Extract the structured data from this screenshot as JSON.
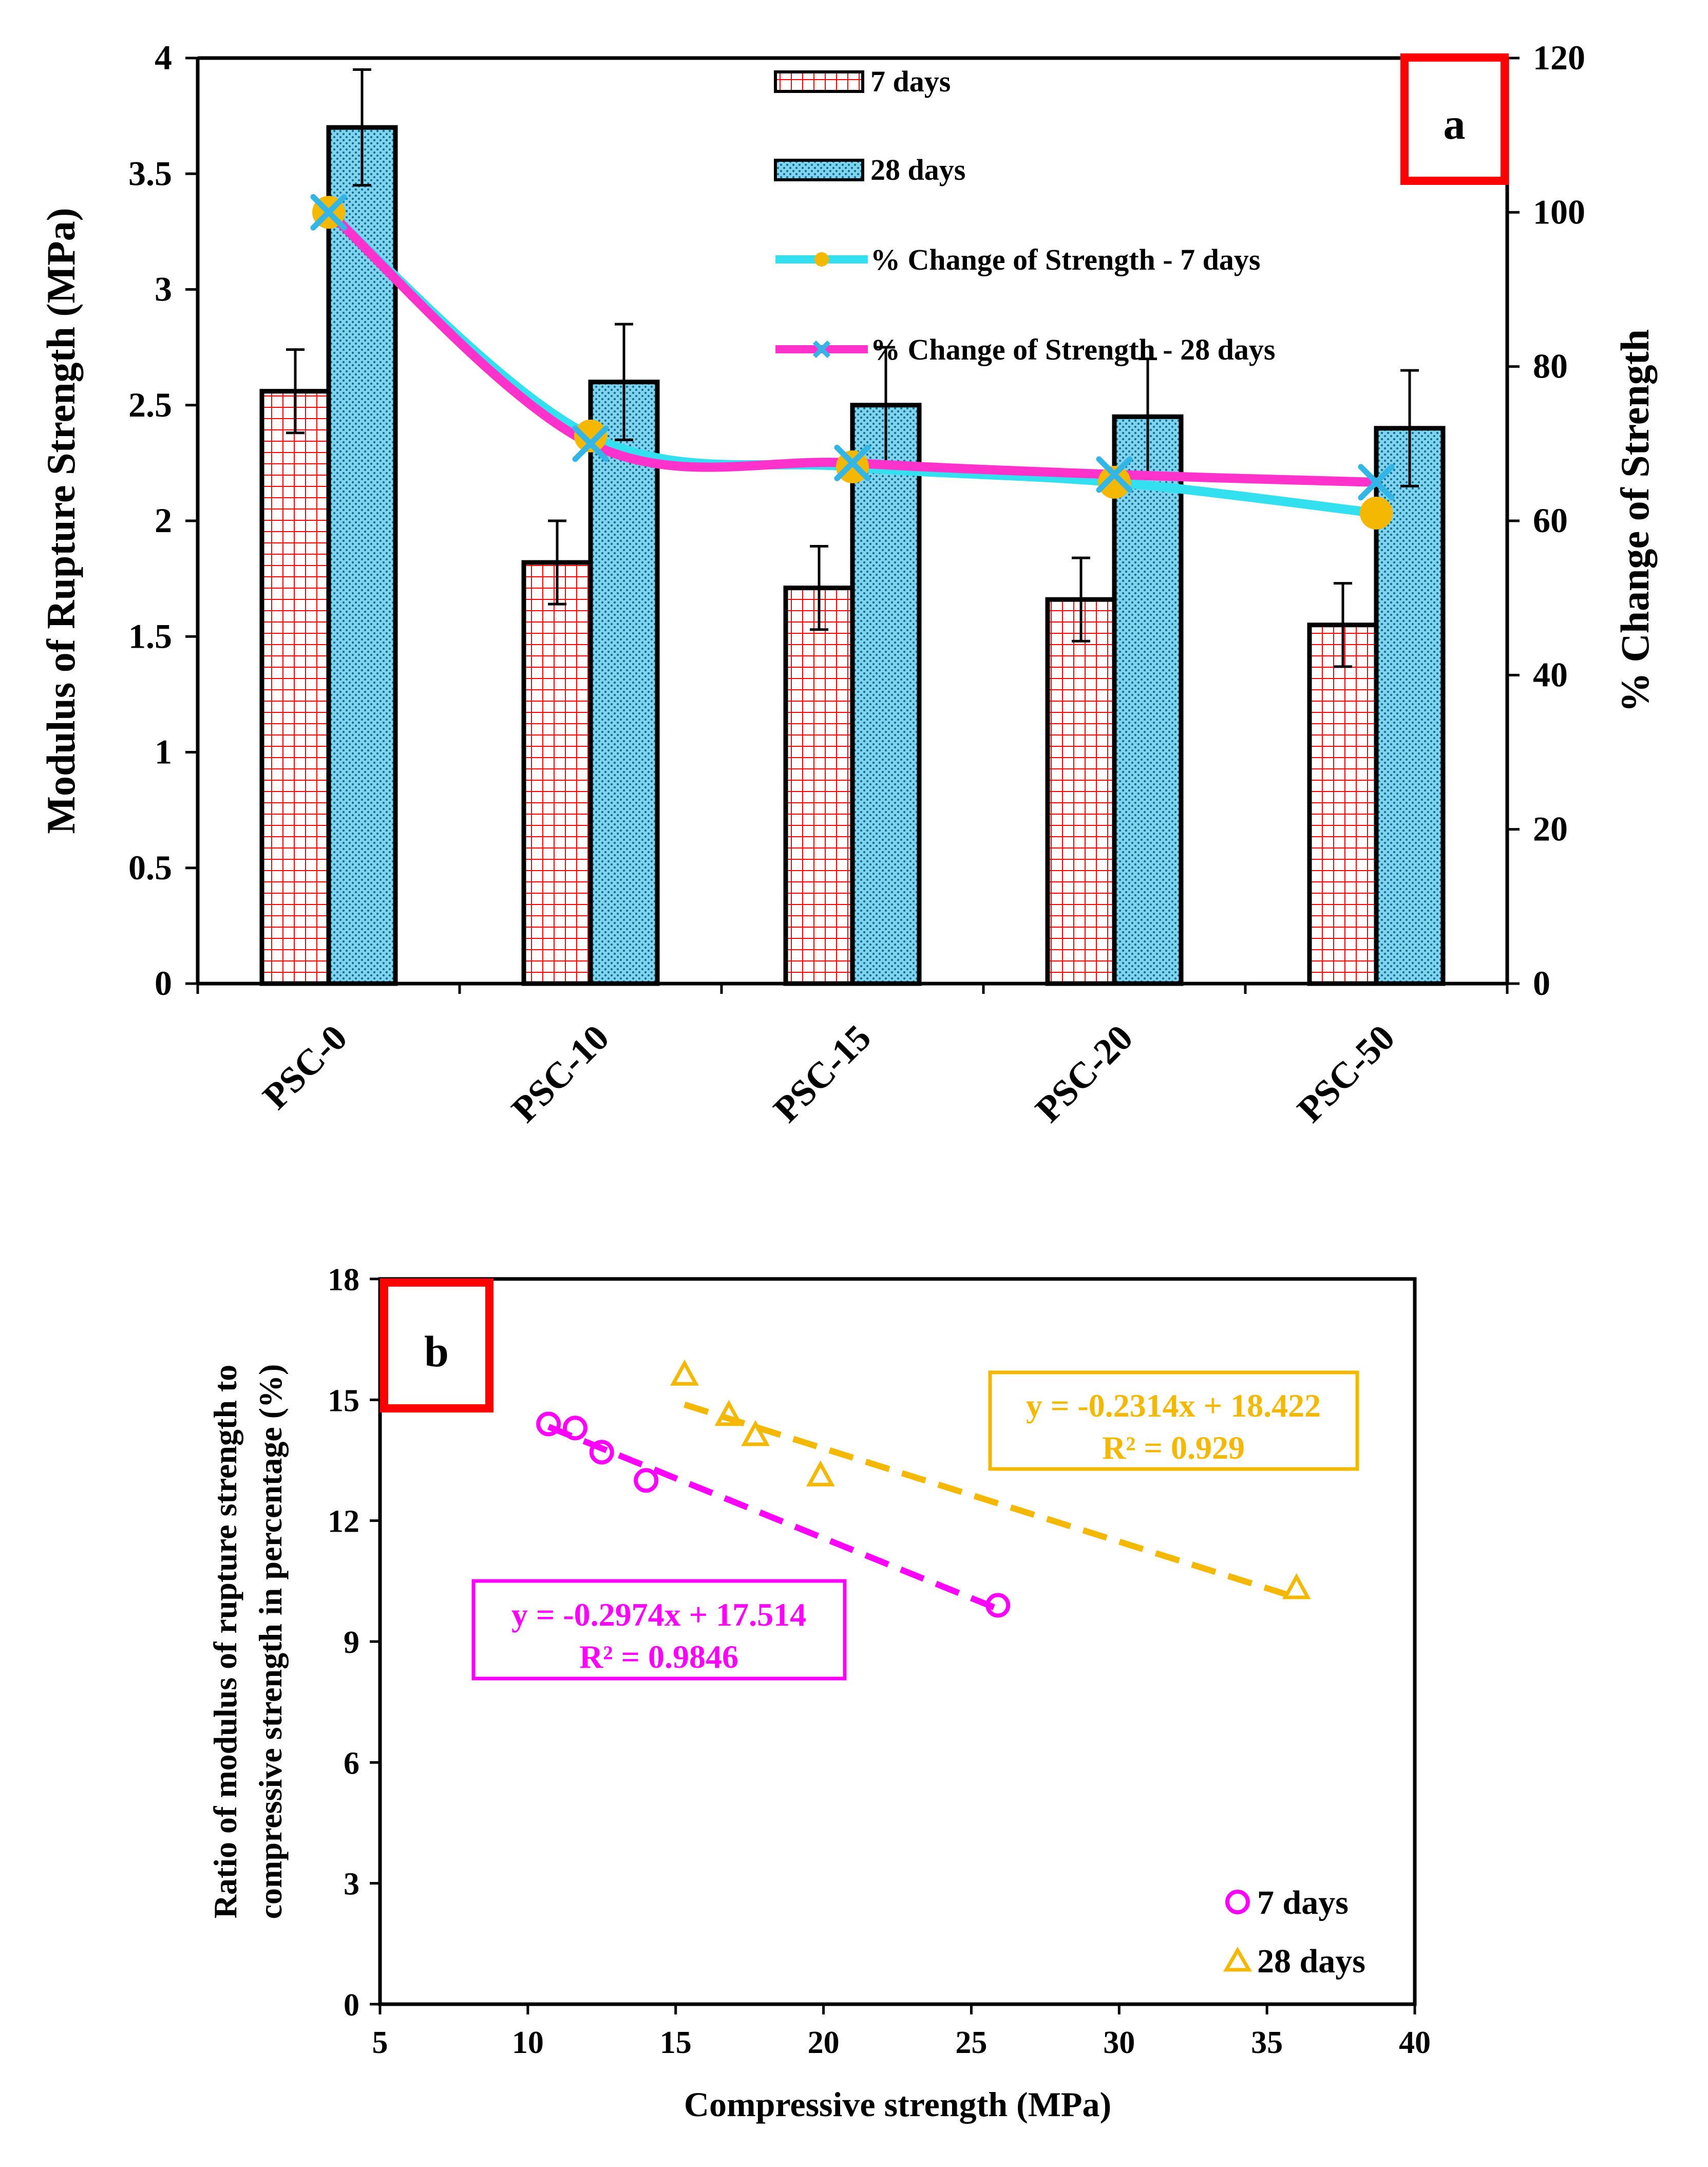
{
  "chart_data": [
    {
      "type": "bar",
      "panel_label": "a",
      "categories": [
        "PSC-0",
        "PSC-10",
        "PSC-15",
        "PSC-20",
        "PSC-50"
      ],
      "ylabel": "Modulus of Rupture Strength (MPa)",
      "ylim": [
        0,
        4
      ],
      "yticks": [
        "0",
        "0.5",
        "1",
        "1.5",
        "2",
        "2.5",
        "3",
        "3.5",
        "4"
      ],
      "y2label": "% Change of Strength",
      "y2lim": [
        0,
        120
      ],
      "y2ticks": [
        "0",
        "20",
        "40",
        "60",
        "80",
        "100",
        "120"
      ],
      "series": [
        {
          "name": "7 days",
          "values": [
            2.56,
            1.82,
            1.71,
            1.66,
            1.55
          ],
          "errors": [
            0.18,
            0.18,
            0.18,
            0.18,
            0.18
          ],
          "color": "#ff0000",
          "pattern": "grid"
        },
        {
          "name": "28 days",
          "values": [
            3.7,
            2.6,
            2.5,
            2.45,
            2.4
          ],
          "errors": [
            0.25,
            0.25,
            0.25,
            0.25,
            0.25
          ],
          "color": "#00b0f0",
          "pattern": "dots"
        }
      ],
      "lines": [
        {
          "name": "% Change of Strength - 7 days",
          "values": [
            100,
            71,
            67,
            65,
            61
          ],
          "color": "#33e0f0",
          "marker_color": "#f5b800",
          "axis": "right"
        },
        {
          "name": "% Change of Strength - 28 days",
          "values": [
            100,
            70,
            67.5,
            66,
            65
          ],
          "color": "#ff33cc",
          "marker_color": "#33b5e5",
          "axis": "right"
        }
      ],
      "legend": "top-center"
    },
    {
      "type": "scatter",
      "panel_label": "b",
      "xlabel": "Compressive strength (MPa)",
      "ylabel_line1": "Ratio of modulus of rupture strength to",
      "ylabel_line2": "compressive strength in percentage (%)",
      "xlim": [
        5,
        40
      ],
      "ylim": [
        0,
        18
      ],
      "xticks": [
        "5",
        "10",
        "15",
        "20",
        "25",
        "30",
        "35",
        "40"
      ],
      "yticks": [
        "0",
        "3",
        "6",
        "9",
        "12",
        "15",
        "18"
      ],
      "series": [
        {
          "name": "7 days",
          "color": "#ff00ff",
          "marker": "circle",
          "points": [
            [
              10.7,
              14.4
            ],
            [
              11.6,
              14.3
            ],
            [
              12.5,
              13.7
            ],
            [
              14.0,
              13.0
            ],
            [
              25.9,
              9.9
            ]
          ],
          "trendline": {
            "slope": -0.2974,
            "intercept": 17.514,
            "x_range": [
              10.7,
              25.9
            ]
          },
          "equation": "y = -0.2974x + 17.514",
          "r2": "R² = 0.9846"
        },
        {
          "name": "28 days",
          "color": "#f5b800",
          "marker": "triangle",
          "points": [
            [
              15.3,
              15.6
            ],
            [
              16.8,
              14.6
            ],
            [
              17.7,
              14.1
            ],
            [
              19.9,
              13.1
            ],
            [
              36.0,
              10.3
            ]
          ],
          "trendline": {
            "slope": -0.2314,
            "intercept": 18.422,
            "x_range": [
              15.3,
              36.0
            ]
          },
          "equation": "y = -0.2314x + 18.422",
          "r2": "R² = 0.929"
        }
      ],
      "legend": "bottom-right"
    }
  ]
}
